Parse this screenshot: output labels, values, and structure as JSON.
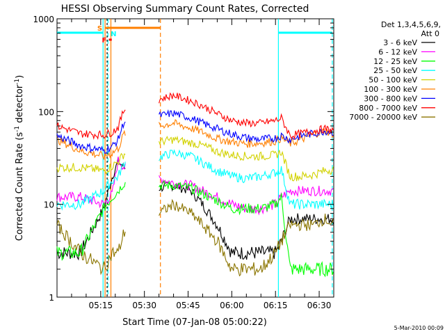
{
  "chart_data": {
    "type": "line",
    "title": "HESSI Observing Summary Count Rates, Corrected",
    "xlabel": "Start Time (07-Jan-08 05:00:22)",
    "ylabel_main": "Corrected Count Rate (s",
    "ylabel_sup1": "-1",
    "ylabel_mid": " detector",
    "ylabel_sup2": "-1",
    "ylabel_end": ")",
    "yscale": "log",
    "ylim": [
      1,
      1000
    ],
    "xlim_min": [
      0,
      95
    ],
    "y_ticks": [
      {
        "value": 1,
        "label": "1"
      },
      {
        "value": 10,
        "label": "10"
      },
      {
        "value": 100,
        "label": "100"
      },
      {
        "value": 1000,
        "label": "1000"
      }
    ],
    "x_ticks": [
      {
        "value": 15,
        "label": "05:15"
      },
      {
        "value": 30,
        "label": "05:30"
      },
      {
        "value": 45,
        "label": "05:45"
      },
      {
        "value": 60,
        "label": "06:00"
      },
      {
        "value": 75,
        "label": "06:15"
      },
      {
        "value": 90,
        "label": "06:30"
      }
    ],
    "legend": {
      "placement": "right",
      "header1": "Det 1,3,4,5,6,9,",
      "header2": "Att 0"
    },
    "series": [
      {
        "name": "3 - 6 keV",
        "color": "#000000",
        "x": [
          0,
          8,
          16,
          19,
          21,
          23,
          35,
          40,
          46,
          50,
          55,
          60,
          65,
          70,
          75,
          77,
          80,
          84,
          88,
          92,
          95
        ],
        "y": [
          3,
          3,
          9,
          20,
          29,
          25,
          15,
          16,
          14,
          10,
          6,
          3,
          3,
          3,
          3,
          4,
          7,
          7,
          7,
          7,
          7
        ]
      },
      {
        "name": "6 - 12 keV",
        "color": "#ff00ff",
        "x": [
          0,
          8,
          16,
          19,
          21,
          23,
          35,
          40,
          46,
          50,
          55,
          60,
          65,
          70,
          75,
          77,
          80,
          84,
          88,
          92,
          95
        ],
        "y": [
          12,
          12,
          10,
          13,
          30,
          25,
          19,
          17,
          16,
          14,
          12,
          10,
          9,
          9,
          10,
          12,
          14,
          14,
          14,
          14,
          14
        ]
      },
      {
        "name": "12 - 25 keV",
        "color": "#00ff00",
        "x": [
          0,
          8,
          16,
          19,
          21,
          23,
          35,
          40,
          46,
          50,
          55,
          60,
          65,
          70,
          75,
          77,
          80,
          84,
          88,
          92,
          95
        ],
        "y": [
          3,
          3,
          9,
          12,
          14,
          17,
          16,
          16,
          15,
          13,
          11,
          9,
          9,
          9,
          10,
          12,
          2,
          2,
          2,
          2,
          2
        ]
      },
      {
        "name": "25 - 50 keV",
        "color": "#00ffff",
        "x": [
          0,
          8,
          16,
          19,
          21,
          23,
          35,
          40,
          46,
          50,
          55,
          60,
          65,
          70,
          75,
          77,
          80,
          84,
          88,
          92,
          95
        ],
        "y": [
          10,
          10,
          14,
          18,
          20,
          28,
          32,
          36,
          33,
          28,
          23,
          20,
          19,
          20,
          22,
          24,
          10,
          10,
          10,
          10,
          10
        ]
      },
      {
        "name": "50 - 100 keV",
        "color": "#d2d200",
        "x": [
          0,
          8,
          16,
          19,
          21,
          23,
          35,
          40,
          46,
          50,
          55,
          60,
          65,
          70,
          75,
          77,
          80,
          84,
          88,
          92,
          95
        ],
        "y": [
          25,
          25,
          23,
          26,
          29,
          35,
          47,
          50,
          46,
          43,
          37,
          34,
          33,
          33,
          34,
          37,
          20,
          20,
          21,
          23,
          24
        ]
      },
      {
        "name": "100 - 300 keV",
        "color": "#ff7f00",
        "x": [
          0,
          8,
          16,
          19,
          21,
          23,
          35,
          40,
          46,
          50,
          55,
          60,
          65,
          70,
          75,
          77,
          80,
          84,
          88,
          92,
          95
        ],
        "y": [
          50,
          38,
          33,
          36,
          40,
          58,
          70,
          75,
          66,
          60,
          51,
          47,
          45,
          46,
          48,
          52,
          45,
          50,
          57,
          62,
          57
        ]
      },
      {
        "name": "300 - 800 keV",
        "color": "#0000ff",
        "x": [
          0,
          8,
          16,
          19,
          21,
          23,
          35,
          40,
          46,
          50,
          55,
          60,
          65,
          70,
          75,
          77,
          80,
          84,
          88,
          92,
          95
        ],
        "y": [
          55,
          43,
          38,
          42,
          50,
          78,
          90,
          96,
          85,
          75,
          65,
          57,
          52,
          50,
          52,
          55,
          50,
          55,
          58,
          62,
          60
        ]
      },
      {
        "name": "800 - 7000 keV",
        "color": "#ff0000",
        "x": [
          0,
          8,
          16,
          19,
          21,
          23,
          35,
          40,
          46,
          50,
          55,
          60,
          65,
          70,
          75,
          77,
          80,
          84,
          88,
          92,
          95
        ],
        "y": [
          70,
          58,
          56,
          60,
          68,
          105,
          135,
          150,
          130,
          115,
          95,
          80,
          75,
          75,
          80,
          85,
          55,
          58,
          62,
          65,
          62
        ]
      },
      {
        "name": "7000 - 20000 keV",
        "color": "#8b7500",
        "x": [
          0,
          8,
          16,
          19,
          21,
          23,
          35,
          40,
          46,
          50,
          55,
          60,
          65,
          70,
          75,
          77,
          80,
          84,
          88,
          92,
          95
        ],
        "y": [
          6,
          3,
          2,
          3,
          3,
          5,
          8,
          10,
          8,
          6,
          4,
          2,
          2,
          2,
          3,
          4,
          6,
          6,
          6,
          7,
          6
        ]
      }
    ],
    "annotations": [
      {
        "label": "S",
        "color": "#ff7f00"
      },
      {
        "label": "N",
        "color": "#00ffff"
      },
      {
        "label": "F",
        "color": "#ff0000"
      }
    ],
    "footer_date": "5-Mar-2010 00:09"
  }
}
